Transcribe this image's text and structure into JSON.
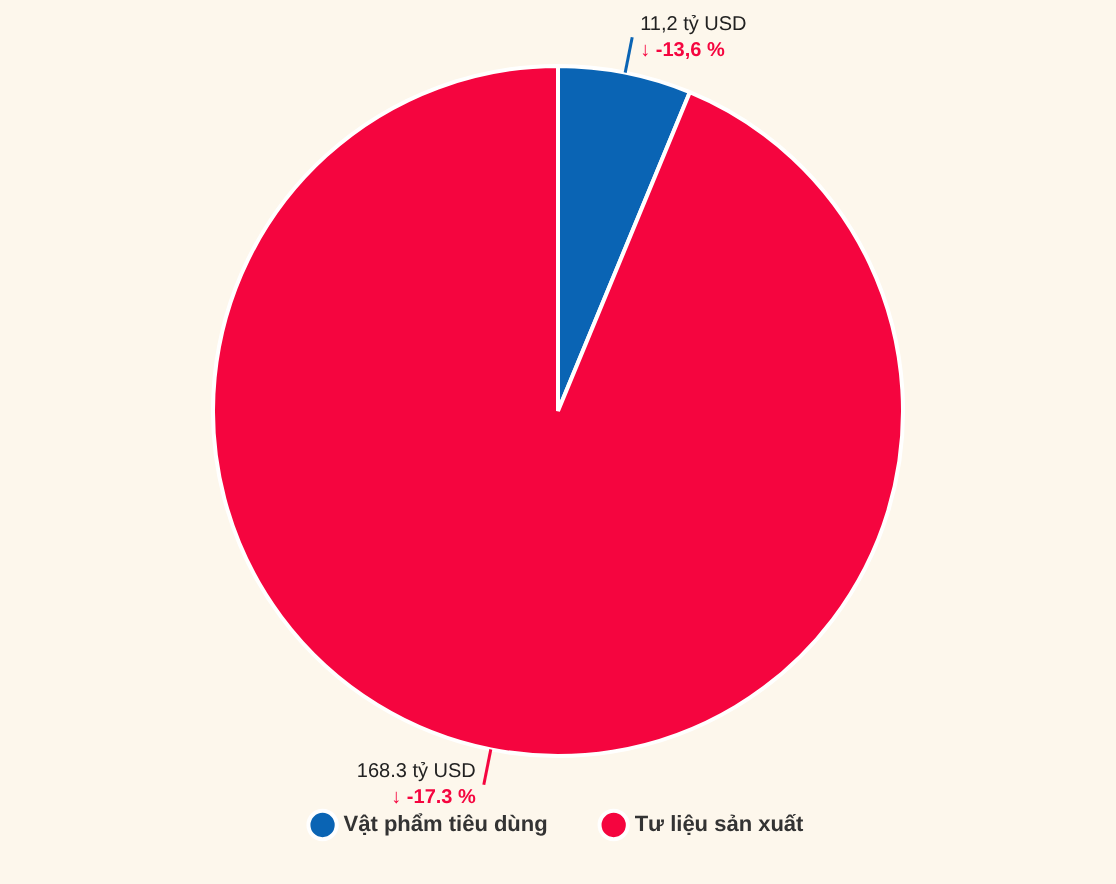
{
  "chart_data": {
    "type": "pie",
    "categories": [
      "Vật phẩm tiêu dùng",
      "Tư liệu sản xuất"
    ],
    "values": [
      11.2,
      168.3
    ],
    "colors": [
      "#0a64b4",
      "#f5053f"
    ],
    "value_labels": [
      "11,2 tỷ USD",
      "168.3 tỷ USD"
    ],
    "annotations": [
      {
        "text": "↓ -13,6 %",
        "x": "Vật phẩm tiêu dùng"
      },
      {
        "text": "↓ -17.3 %",
        "x": "Tư liệu sản xuất"
      }
    ],
    "legend": "bottom"
  }
}
